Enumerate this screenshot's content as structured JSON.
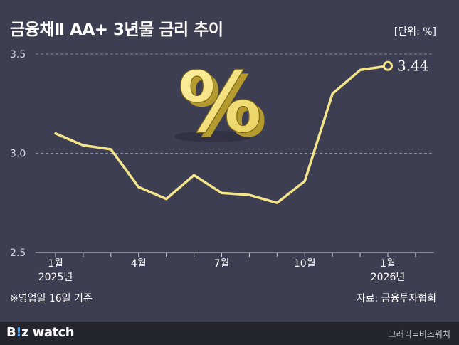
{
  "header": {
    "title": "금융채Ⅱ AA+ 3년물 금리 추이",
    "unit": "[단위: %]"
  },
  "footer": {
    "note": "※영업일 16일 기준",
    "source": "자료: 금융투자협회"
  },
  "brand": {
    "first": "B",
    "mark": "!",
    "rest": "z watch",
    "credit": "그래픽=비즈워치"
  },
  "decoration": {
    "icon": "percent-3d-icon",
    "glyph": "%"
  },
  "colors": {
    "background": "#3e3e52",
    "line": "#f4e58a",
    "footer_bar": "#25252d",
    "brand_accent": "#3aa0ff"
  },
  "chart_data": {
    "type": "line",
    "x": [
      "2025-01",
      "2025-02",
      "2025-03",
      "2025-04",
      "2025-05",
      "2025-06",
      "2025-07",
      "2025-08",
      "2025-09",
      "2025-10",
      "2025-11",
      "2025-12",
      "2026-01"
    ],
    "series": [
      {
        "values": [
          3.1,
          3.04,
          3.02,
          2.83,
          2.77,
          2.89,
          2.8,
          2.79,
          2.75,
          2.86,
          3.3,
          3.42,
          3.44
        ]
      }
    ],
    "ylim": [
      2.5,
      3.5
    ],
    "yticks": [
      "2.5",
      "3.0",
      "3.5"
    ],
    "xtick_labels": [
      {
        "index": 0,
        "label": "1월",
        "sublabel": "2025년"
      },
      {
        "index": 3,
        "label": "4월",
        "sublabel": ""
      },
      {
        "index": 6,
        "label": "7월",
        "sublabel": ""
      },
      {
        "index": 9,
        "label": "10월",
        "sublabel": ""
      },
      {
        "index": 12,
        "label": "1월",
        "sublabel": "2026년"
      }
    ],
    "end_label": "3.44",
    "grid": true
  }
}
